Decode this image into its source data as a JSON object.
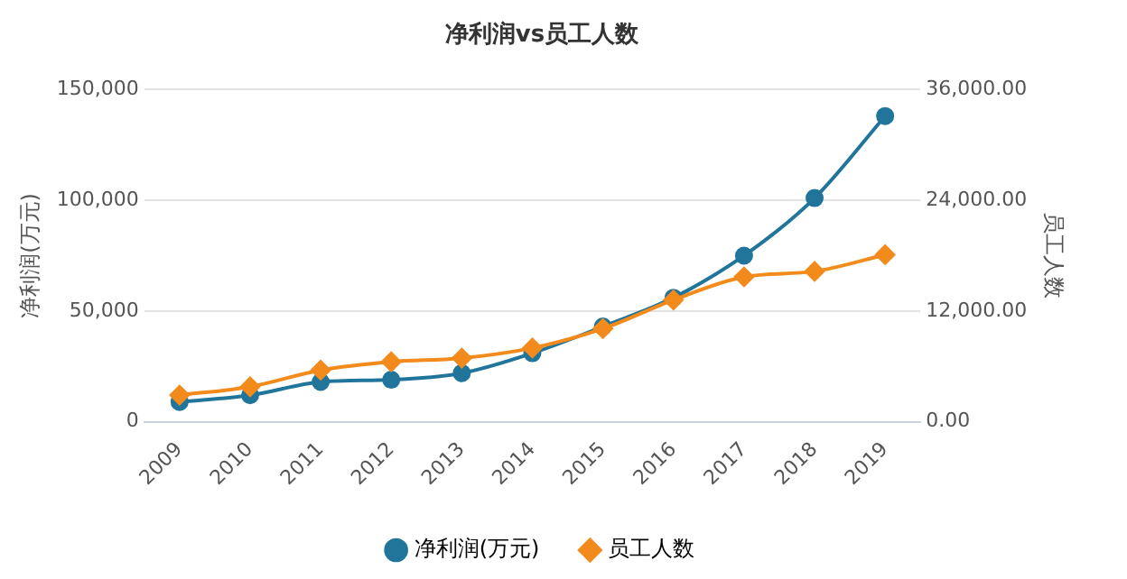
{
  "chart_data": {
    "type": "line",
    "title": "净利润vs员工人数",
    "ylabel": "净利润(万元)",
    "y2label": "员工人数",
    "categories": [
      "2009",
      "2010",
      "2011",
      "2012",
      "2013",
      "2014",
      "2015",
      "2016",
      "2017",
      "2018",
      "2019"
    ],
    "series": [
      {
        "name": "净利润(万元)",
        "color": "#21759b",
        "marker": "circle",
        "values": [
          9000,
          12000,
          18000,
          19000,
          22000,
          31000,
          43000,
          56000,
          75000,
          101000,
          138000
        ]
      },
      {
        "name": "员工人数",
        "color": "#f28a1c",
        "marker": "diamond",
        "axis": "y2",
        "values": [
          2900,
          3800,
          5600,
          6500,
          6900,
          8000,
          10100,
          13200,
          15700,
          16300,
          18100
        ]
      }
    ],
    "ylim": [
      0,
      150000
    ],
    "yticks": [
      {
        "value": 0,
        "label": "0"
      },
      {
        "value": 50000,
        "label": "50,000"
      },
      {
        "value": 100000,
        "label": "100,000"
      },
      {
        "value": 150000,
        "label": "150,000"
      }
    ],
    "y2lim": [
      0,
      36000
    ],
    "y2ticks": [
      {
        "value": 0,
        "label": "0.00"
      },
      {
        "value": 12000,
        "label": "12,000.00"
      },
      {
        "value": 24000,
        "label": "24,000.00"
      },
      {
        "value": 36000,
        "label": "36,000.00"
      }
    ],
    "grid": "y",
    "legend": "bottom"
  }
}
